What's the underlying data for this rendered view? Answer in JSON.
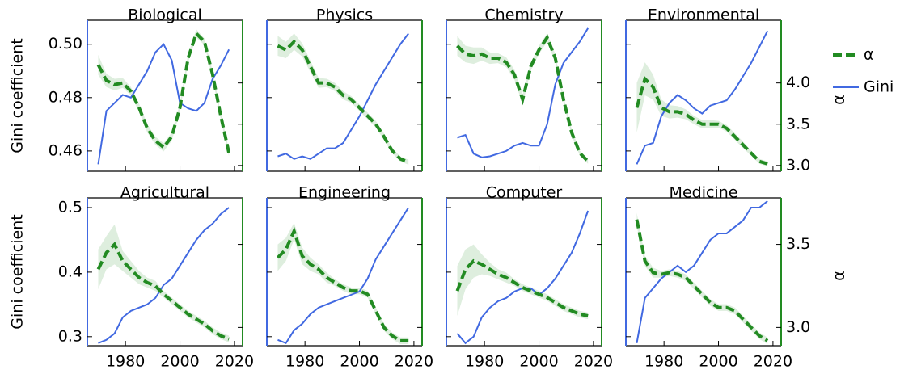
{
  "legend": [
    {
      "name": "α",
      "color": "#228b22"
    },
    {
      "name": "Gini",
      "color": "#4169e1"
    }
  ],
  "chart_data": [
    {
      "type": "line",
      "title": "Biological",
      "ylabel": "Gini coefficient",
      "x": [
        1970,
        1973,
        1976,
        1979,
        1982,
        1985,
        1988,
        1991,
        1994,
        1997,
        2000,
        2003,
        2006,
        2009,
        2012,
        2015,
        2018
      ],
      "xlim": [
        1966,
        2023
      ],
      "xticks": [
        1980,
        2000,
        2020
      ],
      "ylim": [
        0.4524,
        0.509
      ],
      "yticks": [
        0.46,
        0.48,
        {
          "value": 0.5,
          "label": "0.50"
        }
      ],
      "y2lim": [
        2.93,
        4.76
      ],
      "y2ticks": [
        {
          "value": 3,
          "label": "3.0"
        },
        3.5,
        {
          "value": 4,
          "label": "4.0"
        }
      ],
      "series": [
        {
          "color": "#4169e1",
          "values": [
            0.455,
            0.475,
            0.478,
            0.481,
            0.48,
            0.485,
            0.49,
            0.497,
            0.5,
            0.494,
            0.478,
            0.476,
            0.475,
            0.478,
            0.487,
            0.492,
            0.498
          ]
        },
        {
          "color": "#228b22",
          "axis": "y2",
          "values": [
            4.22,
            4.03,
            3.98,
            4.0,
            3.9,
            3.7,
            3.45,
            3.3,
            3.22,
            3.35,
            3.7,
            4.3,
            4.6,
            4.5,
            4.1,
            3.6,
            3.15
          ],
          "error": [
            0.12,
            0.08,
            0.07,
            0.06,
            0.05,
            0.05,
            0.05,
            0.05,
            0.05,
            0.05,
            0.05,
            0.05,
            0.05,
            0.04,
            0.04,
            0.04,
            0.04
          ]
        }
      ]
    },
    {
      "type": "line",
      "title": "Physics",
      "x": [
        1970,
        1973,
        1976,
        1979,
        1982,
        1985,
        1988,
        1991,
        1994,
        1997,
        2000,
        2003,
        2006,
        2009,
        2012,
        2015,
        2018
      ],
      "xlim": [
        1966,
        2023
      ],
      "xticks": [
        1980,
        2000,
        2020
      ],
      "ylim": [
        0.4524,
        0.509
      ],
      "yticks": [
        0.46,
        0.48,
        {
          "value": 0.5,
          "label": "0.50"
        }
      ],
      "y2lim": [
        2.93,
        4.76
      ],
      "y2ticks": [
        {
          "value": 3,
          "label": "3.0"
        },
        3.5,
        {
          "value": 4,
          "label": "4.0"
        }
      ],
      "series": [
        {
          "color": "#4169e1",
          "values": [
            0.458,
            0.459,
            0.457,
            0.458,
            0.457,
            0.459,
            0.461,
            0.461,
            0.463,
            0.468,
            0.473,
            0.479,
            0.485,
            0.49,
            0.495,
            0.5,
            0.504
          ]
        },
        {
          "color": "#228b22",
          "axis": "y2",
          "values": [
            4.45,
            4.4,
            4.5,
            4.4,
            4.2,
            4.0,
            4.0,
            3.95,
            3.85,
            3.8,
            3.7,
            3.6,
            3.5,
            3.35,
            3.18,
            3.08,
            3.04
          ],
          "error": [
            0.12,
            0.1,
            0.1,
            0.08,
            0.07,
            0.06,
            0.05,
            0.05,
            0.05,
            0.04,
            0.04,
            0.04,
            0.04,
            0.04,
            0.03,
            0.03,
            0.03
          ]
        }
      ]
    },
    {
      "type": "line",
      "title": "Chemistry",
      "x": [
        1970,
        1973,
        1976,
        1979,
        1982,
        1985,
        1988,
        1991,
        1994,
        1997,
        2000,
        2003,
        2006,
        2009,
        2012,
        2015,
        2018
      ],
      "xlim": [
        1966,
        2023
      ],
      "xticks": [
        1980,
        2000,
        2020
      ],
      "ylim": [
        0.4524,
        0.509
      ],
      "yticks": [
        0.46,
        0.48,
        {
          "value": 0.5,
          "label": "0.50"
        }
      ],
      "y2lim": [
        2.93,
        4.76
      ],
      "y2ticks": [
        {
          "value": 3,
          "label": "3.0"
        },
        3.5,
        {
          "value": 4,
          "label": "4.0"
        }
      ],
      "series": [
        {
          "color": "#4169e1",
          "values": [
            0.465,
            0.466,
            0.459,
            0.4576,
            0.458,
            0.459,
            0.46,
            0.462,
            0.463,
            0.462,
            0.462,
            0.47,
            0.485,
            0.493,
            0.497,
            0.501,
            0.506
          ]
        },
        {
          "color": "#228b22",
          "axis": "y2",
          "values": [
            4.45,
            4.35,
            4.33,
            4.35,
            4.3,
            4.3,
            4.25,
            4.1,
            3.8,
            4.2,
            4.4,
            4.55,
            4.3,
            3.8,
            3.4,
            3.15,
            3.05
          ],
          "error": [
            0.12,
            0.1,
            0.1,
            0.08,
            0.07,
            0.06,
            0.06,
            0.06,
            0.06,
            0.05,
            0.05,
            0.05,
            0.05,
            0.04,
            0.04,
            0.03,
            0.03
          ]
        }
      ]
    },
    {
      "type": "line",
      "title": "Environmental",
      "y2label": "α",
      "x": [
        1970,
        1973,
        1976,
        1979,
        1982,
        1985,
        1988,
        1991,
        1994,
        1997,
        2000,
        2003,
        2006,
        2009,
        2012,
        2015,
        2018
      ],
      "xlim": [
        1966,
        2023
      ],
      "xticks": [
        1980,
        2000,
        2020
      ],
      "ylim": [
        0.4524,
        0.509
      ],
      "yticks": [
        0.46,
        0.48,
        {
          "value": 0.5,
          "label": "0.50"
        }
      ],
      "y2lim": [
        2.93,
        4.76
      ],
      "y2ticks": [
        {
          "value": 3,
          "label": "3.0"
        },
        3.5,
        {
          "value": 4,
          "label": "4.0"
        }
      ],
      "series": [
        {
          "color": "#4169e1",
          "values": [
            0.455,
            0.462,
            0.463,
            0.473,
            0.478,
            0.481,
            0.479,
            0.476,
            0.474,
            0.477,
            0.478,
            0.479,
            0.483,
            0.488,
            0.493,
            0.499,
            0.505
          ]
        },
        {
          "color": "#228b22",
          "axis": "y2",
          "values": [
            3.7,
            4.05,
            3.95,
            3.7,
            3.65,
            3.65,
            3.62,
            3.55,
            3.5,
            3.5,
            3.5,
            3.45,
            3.35,
            3.25,
            3.15,
            3.05,
            3.02
          ],
          "error": [
            0.3,
            0.2,
            0.15,
            0.1,
            0.08,
            0.07,
            0.06,
            0.05,
            0.05,
            0.05,
            0.04,
            0.04,
            0.04,
            0.04,
            0.03,
            0.03,
            0.03
          ]
        }
      ]
    },
    {
      "type": "line",
      "title": "Agricultural",
      "ylabel": "Gini coefficient",
      "x": [
        1970,
        1973,
        1976,
        1979,
        1982,
        1985,
        1988,
        1991,
        1994,
        1997,
        2000,
        2003,
        2006,
        2009,
        2012,
        2015,
        2018
      ],
      "xlim": [
        1966,
        2023
      ],
      "xticks": [
        1980,
        2000,
        2020
      ],
      "ylim": [
        0.286,
        0.515
      ],
      "yticks": [
        0.3,
        0.4,
        0.5
      ],
      "y2lim": [
        2.89,
        3.78
      ],
      "y2ticks": [
        {
          "value": 3,
          "label": "3.0"
        },
        3.5
      ],
      "series": [
        {
          "color": "#4169e1",
          "values": [
            0.29,
            0.295,
            0.305,
            0.33,
            0.34,
            0.345,
            0.35,
            0.36,
            0.38,
            0.39,
            0.41,
            0.43,
            0.45,
            0.465,
            0.475,
            0.49,
            0.5
          ]
        },
        {
          "color": "#228b22",
          "axis": "y2",
          "values": [
            3.35,
            3.45,
            3.5,
            3.4,
            3.35,
            3.3,
            3.27,
            3.25,
            3.2,
            3.16,
            3.12,
            3.08,
            3.05,
            3.02,
            2.98,
            2.95,
            2.93
          ],
          "error": [
            0.12,
            0.1,
            0.12,
            0.06,
            0.05,
            0.04,
            0.03,
            0.03,
            0.02,
            0.02,
            0.02,
            0.02,
            0.02,
            0.02,
            0.02,
            0.02,
            0.02
          ]
        }
      ]
    },
    {
      "type": "line",
      "title": "Engineering",
      "x": [
        1970,
        1973,
        1976,
        1979,
        1982,
        1985,
        1988,
        1991,
        1994,
        1997,
        2000,
        2003,
        2006,
        2009,
        2012,
        2015,
        2018
      ],
      "xlim": [
        1966,
        2023
      ],
      "xticks": [
        1980,
        2000,
        2020
      ],
      "ylim": [
        0.286,
        0.515
      ],
      "yticks": [
        0.3,
        0.4,
        0.5
      ],
      "y2lim": [
        2.89,
        3.78
      ],
      "y2ticks": [
        {
          "value": 3,
          "label": "3.0"
        },
        3.5
      ],
      "series": [
        {
          "color": "#4169e1",
          "values": [
            0.295,
            0.29,
            0.31,
            0.32,
            0.335,
            0.345,
            0.35,
            0.355,
            0.36,
            0.365,
            0.37,
            0.39,
            0.42,
            0.44,
            0.46,
            0.48,
            0.5
          ]
        },
        {
          "color": "#228b22",
          "axis": "y2",
          "values": [
            3.42,
            3.47,
            3.58,
            3.43,
            3.38,
            3.35,
            3.3,
            3.27,
            3.24,
            3.22,
            3.22,
            3.2,
            3.1,
            3.0,
            2.95,
            2.92,
            2.92
          ],
          "error": [
            0.08,
            0.07,
            0.05,
            0.05,
            0.04,
            0.03,
            0.03,
            0.02,
            0.02,
            0.02,
            0.02,
            0.02,
            0.02,
            0.02,
            0.02,
            0.02,
            0.02
          ]
        }
      ]
    },
    {
      "type": "line",
      "title": "Computer",
      "x": [
        1970,
        1973,
        1976,
        1979,
        1982,
        1985,
        1988,
        1991,
        1994,
        1997,
        2000,
        2003,
        2006,
        2009,
        2012,
        2015,
        2018
      ],
      "xlim": [
        1966,
        2023
      ],
      "xticks": [
        1980,
        2000,
        2020
      ],
      "ylim": [
        0.286,
        0.515
      ],
      "yticks": [
        0.3,
        0.4,
        0.5
      ],
      "y2lim": [
        2.89,
        3.78
      ],
      "y2ticks": [
        {
          "value": 3,
          "label": "3.0"
        },
        3.5
      ],
      "series": [
        {
          "color": "#4169e1",
          "values": [
            0.305,
            0.29,
            0.3,
            0.33,
            0.345,
            0.355,
            0.36,
            0.37,
            0.375,
            0.375,
            0.365,
            0.375,
            0.39,
            0.41,
            0.43,
            0.46,
            0.495
          ]
        },
        {
          "color": "#228b22",
          "axis": "y2",
          "values": [
            3.22,
            3.35,
            3.4,
            3.38,
            3.35,
            3.32,
            3.3,
            3.27,
            3.24,
            3.22,
            3.2,
            3.18,
            3.15,
            3.12,
            3.1,
            3.08,
            3.07
          ],
          "error": [
            0.15,
            0.12,
            0.1,
            0.06,
            0.04,
            0.03,
            0.03,
            0.02,
            0.02,
            0.02,
            0.02,
            0.02,
            0.02,
            0.02,
            0.02,
            0.02,
            0.02
          ]
        }
      ]
    },
    {
      "type": "line",
      "title": "Medicine",
      "y2label": "α",
      "x": [
        1970,
        1973,
        1976,
        1979,
        1982,
        1985,
        1988,
        1991,
        1994,
        1997,
        2000,
        2003,
        2006,
        2009,
        2012,
        2015,
        2018
      ],
      "xlim": [
        1966,
        2023
      ],
      "xticks": [
        1980,
        2000,
        2020
      ],
      "ylim": [
        0.286,
        0.515
      ],
      "yticks": [
        0.3,
        0.4,
        0.5
      ],
      "y2lim": [
        2.89,
        3.78
      ],
      "y2ticks": [
        {
          "value": 3,
          "label": "3.0"
        },
        3.5
      ],
      "series": [
        {
          "color": "#4169e1",
          "values": [
            0.29,
            0.36,
            0.375,
            0.39,
            0.4,
            0.41,
            0.4,
            0.41,
            0.43,
            0.45,
            0.46,
            0.46,
            0.47,
            0.48,
            0.5,
            0.5,
            0.51
          ]
        },
        {
          "color": "#228b22",
          "axis": "y2",
          "values": [
            3.65,
            3.4,
            3.33,
            3.32,
            3.33,
            3.32,
            3.3,
            3.25,
            3.2,
            3.15,
            3.12,
            3.12,
            3.1,
            3.05,
            3.0,
            2.95,
            2.92
          ],
          "error": [
            0.04,
            0.03,
            0.03,
            0.02,
            0.02,
            0.02,
            0.02,
            0.02,
            0.02,
            0.02,
            0.02,
            0.02,
            0.02,
            0.02,
            0.02,
            0.02,
            0.02
          ]
        }
      ]
    }
  ]
}
